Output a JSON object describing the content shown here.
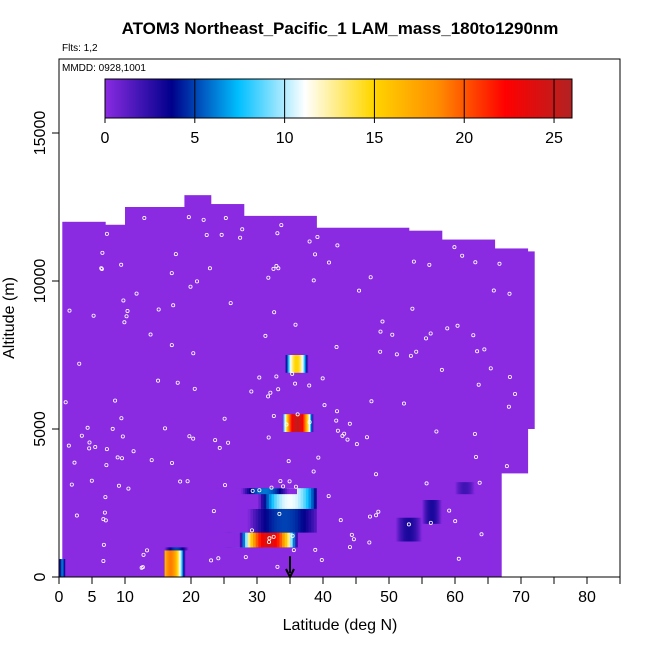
{
  "chart_data": {
    "type": "heatmap",
    "title": "ATOM3 Northeast_Pacific_1 LAM_mass_180to1290nm",
    "subtitle_flights": "Flts: 1,2",
    "subtitle_dates": "MMDD: 0928,1001",
    "xlabel": "Latitude (deg N)",
    "ylabel": "Altitude (m)",
    "xlim": [
      0,
      85
    ],
    "ylim": [
      0,
      17500
    ],
    "x_ticks": [
      0,
      5,
      10,
      20,
      30,
      40,
      50,
      60,
      70,
      80
    ],
    "x_tick_labels": [
      "0",
      "5",
      "10",
      "20",
      "30",
      "40",
      "50",
      "60",
      "70",
      "80"
    ],
    "y_ticks": [
      0,
      5000,
      10000,
      15000
    ],
    "y_tick_labels": [
      "0",
      "5000",
      "10000",
      "15000"
    ],
    "colorbar": {
      "range": [
        0,
        26
      ],
      "ticks": [
        0,
        5,
        10,
        15,
        20,
        25
      ],
      "tick_labels": [
        "0",
        "5",
        "10",
        "15",
        "20",
        "25"
      ],
      "colors": [
        "#8a2be2",
        "#00008b",
        "#00bfff",
        "#ffffff",
        "#ffd700",
        "#ff8c00",
        "#ff0000",
        "#b22222"
      ]
    },
    "background_value": 0,
    "background_color": "#8a2be2",
    "coverage_columns": [
      {
        "lat": [
          0.5,
          1
        ],
        "alt": [
          0,
          12000
        ]
      },
      {
        "lat": [
          1,
          7
        ],
        "alt": [
          0,
          12000
        ]
      },
      {
        "lat": [
          7,
          10
        ],
        "alt": [
          0,
          11900
        ]
      },
      {
        "lat": [
          10,
          19
        ],
        "alt": [
          0,
          12500
        ]
      },
      {
        "lat": [
          19,
          23
        ],
        "alt": [
          0,
          12900
        ]
      },
      {
        "lat": [
          23,
          28
        ],
        "alt": [
          0,
          12600
        ]
      },
      {
        "lat": [
          28,
          39
        ],
        "alt": [
          0,
          12200
        ]
      },
      {
        "lat": [
          39,
          53
        ],
        "alt": [
          0,
          11800
        ]
      },
      {
        "lat": [
          53,
          58
        ],
        "alt": [
          0,
          11700
        ]
      },
      {
        "lat": [
          58,
          66
        ],
        "alt": [
          0,
          11400
        ]
      },
      {
        "lat": [
          66,
          71
        ],
        "alt": [
          3500,
          11100
        ]
      },
      {
        "lat": [
          71,
          72
        ],
        "alt": [
          5000,
          11000
        ]
      }
    ],
    "coverage_steps_east": [
      {
        "lat": [
          54,
          56
        ],
        "alt": [
          0,
          800
        ]
      },
      {
        "lat": [
          56,
          57
        ],
        "alt": [
          0,
          1400
        ]
      },
      {
        "lat": [
          57,
          58.5
        ],
        "alt": [
          0,
          1900
        ]
      },
      {
        "lat": [
          58.5,
          61
        ],
        "alt": [
          0,
          2800
        ]
      },
      {
        "lat": [
          61,
          62.5
        ],
        "alt": [
          0,
          3200
        ]
      },
      {
        "lat": [
          62.5,
          64
        ],
        "alt": [
          0,
          3600
        ]
      },
      {
        "lat": [
          64,
          65.5
        ],
        "alt": [
          0,
          4200
        ]
      },
      {
        "lat": [
          65.5,
          67
        ],
        "alt": [
          0,
          4800
        ]
      }
    ],
    "features": [
      {
        "lat": [
          16,
          22
        ],
        "alt": [
          0,
          900
        ],
        "peak": 19,
        "peak_at": 0.15,
        "width": 0.75
      },
      {
        "lat": [
          16,
          22
        ],
        "alt": [
          900,
          1000
        ],
        "peak": 5,
        "peak_at": 0.3,
        "width": 0.6
      },
      {
        "lat": [
          22,
          34
        ],
        "alt": [
          1000,
          1500
        ],
        "peak": 8,
        "peak_at": 0.5,
        "width": 0.5
      },
      {
        "lat": [
          23,
          39
        ],
        "alt": [
          1000,
          1500
        ],
        "peak": 24,
        "peak_at": 0.55,
        "width": 0.55
      },
      {
        "lat": [
          23,
          39
        ],
        "alt": [
          1500,
          2300
        ],
        "peak": 5,
        "peak_at": 0.7,
        "width": 0.7
      },
      {
        "lat": [
          23,
          39
        ],
        "alt": [
          2300,
          3000
        ],
        "peak": 11,
        "peak_at": 0.75,
        "width": 0.6
      },
      {
        "lat": [
          24,
          36
        ],
        "alt": [
          2800,
          3000
        ],
        "peak": 6,
        "peak_at": 0.6,
        "width": 0.6
      },
      {
        "lat": [
          34,
          41
        ],
        "alt": [
          4900,
          5500
        ],
        "peak": 25,
        "peak_at": 0.3,
        "width": 0.7
      },
      {
        "lat": [
          34,
          39
        ],
        "alt": [
          6900,
          7500
        ],
        "peak": 15,
        "peak_at": 0.4,
        "width": 0.7
      },
      {
        "lat": [
          0,
          1
        ],
        "alt": [
          0,
          600
        ],
        "peak": 6,
        "peak_at": 0.5,
        "width": 1
      },
      {
        "lat": [
          51,
          55
        ],
        "alt": [
          1200,
          2000
        ],
        "peak": 3,
        "peak_at": 0.5,
        "width": 1
      },
      {
        "lat": [
          55,
          58
        ],
        "alt": [
          1800,
          2600
        ],
        "peak": 3,
        "peak_at": 0.5,
        "width": 1
      },
      {
        "lat": [
          60,
          63
        ],
        "alt": [
          2800,
          3200
        ],
        "peak": 2,
        "peak_at": 0.5,
        "width": 1
      }
    ],
    "marker": {
      "lat": 35,
      "type": "arrow-down",
      "alt": [
        700,
        0
      ]
    }
  }
}
